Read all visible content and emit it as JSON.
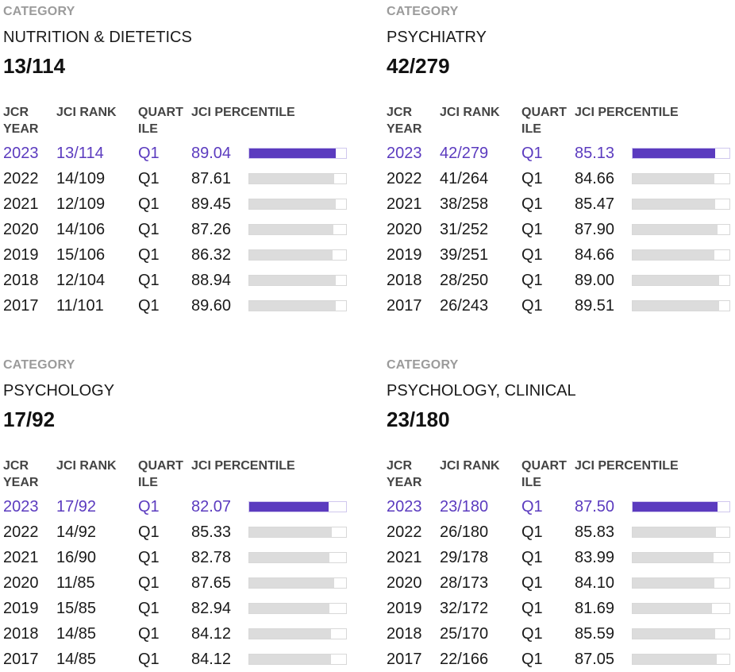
{
  "colors": {
    "accent": "#5b3bbf",
    "bar_inactive": "#dcdcdc",
    "label_gray": "#9b9b9b"
  },
  "categories": [
    {
      "label": "CATEGORY",
      "name": "NUTRITION & DIETETICS",
      "rank": "13/114",
      "headers": {
        "year": "JCR YEAR",
        "rank": "JCI RANK",
        "quartile": "QUART ILE",
        "percentile": "JCI PERCENTILE"
      },
      "rows": [
        {
          "year": "2023",
          "rank": "13/114",
          "quartile": "Q1",
          "percentile": "89.04"
        },
        {
          "year": "2022",
          "rank": "14/109",
          "quartile": "Q1",
          "percentile": "87.61"
        },
        {
          "year": "2021",
          "rank": "12/109",
          "quartile": "Q1",
          "percentile": "89.45"
        },
        {
          "year": "2020",
          "rank": "14/106",
          "quartile": "Q1",
          "percentile": "87.26"
        },
        {
          "year": "2019",
          "rank": "15/106",
          "quartile": "Q1",
          "percentile": "86.32"
        },
        {
          "year": "2018",
          "rank": "12/104",
          "quartile": "Q1",
          "percentile": "88.94"
        },
        {
          "year": "2017",
          "rank": "11/101",
          "quartile": "Q1",
          "percentile": "89.60"
        }
      ]
    },
    {
      "label": "CATEGORY",
      "name": "PSYCHIATRY",
      "rank": "42/279",
      "headers": {
        "year": "JCR YEAR",
        "rank": "JCI RANK",
        "quartile": "QUART ILE",
        "percentile": "JCI PERCENTILE"
      },
      "rows": [
        {
          "year": "2023",
          "rank": "42/279",
          "quartile": "Q1",
          "percentile": "85.13"
        },
        {
          "year": "2022",
          "rank": "41/264",
          "quartile": "Q1",
          "percentile": "84.66"
        },
        {
          "year": "2021",
          "rank": "38/258",
          "quartile": "Q1",
          "percentile": "85.47"
        },
        {
          "year": "2020",
          "rank": "31/252",
          "quartile": "Q1",
          "percentile": "87.90"
        },
        {
          "year": "2019",
          "rank": "39/251",
          "quartile": "Q1",
          "percentile": "84.66"
        },
        {
          "year": "2018",
          "rank": "28/250",
          "quartile": "Q1",
          "percentile": "89.00"
        },
        {
          "year": "2017",
          "rank": "26/243",
          "quartile": "Q1",
          "percentile": "89.51"
        }
      ]
    },
    {
      "label": "CATEGORY",
      "name": "PSYCHOLOGY",
      "rank": "17/92",
      "headers": {
        "year": "JCR YEAR",
        "rank": "JCI RANK",
        "quartile": "QUART ILE",
        "percentile": "JCI PERCENTILE"
      },
      "rows": [
        {
          "year": "2023",
          "rank": "17/92",
          "quartile": "Q1",
          "percentile": "82.07"
        },
        {
          "year": "2022",
          "rank": "14/92",
          "quartile": "Q1",
          "percentile": "85.33"
        },
        {
          "year": "2021",
          "rank": "16/90",
          "quartile": "Q1",
          "percentile": "82.78"
        },
        {
          "year": "2020",
          "rank": "11/85",
          "quartile": "Q1",
          "percentile": "87.65"
        },
        {
          "year": "2019",
          "rank": "15/85",
          "quartile": "Q1",
          "percentile": "82.94"
        },
        {
          "year": "2018",
          "rank": "14/85",
          "quartile": "Q1",
          "percentile": "84.12"
        },
        {
          "year": "2017",
          "rank": "14/85",
          "quartile": "Q1",
          "percentile": "84.12"
        }
      ]
    },
    {
      "label": "CATEGORY",
      "name": "PSYCHOLOGY, CLINICAL",
      "rank": "23/180",
      "headers": {
        "year": "JCR YEAR",
        "rank": "JCI RANK",
        "quartile": "QUART ILE",
        "percentile": "JCI PERCENTILE"
      },
      "rows": [
        {
          "year": "2023",
          "rank": "23/180",
          "quartile": "Q1",
          "percentile": "87.50"
        },
        {
          "year": "2022",
          "rank": "26/180",
          "quartile": "Q1",
          "percentile": "85.83"
        },
        {
          "year": "2021",
          "rank": "29/178",
          "quartile": "Q1",
          "percentile": "83.99"
        },
        {
          "year": "2020",
          "rank": "28/173",
          "quartile": "Q1",
          "percentile": "84.10"
        },
        {
          "year": "2019",
          "rank": "32/172",
          "quartile": "Q1",
          "percentile": "81.69"
        },
        {
          "year": "2018",
          "rank": "25/170",
          "quartile": "Q1",
          "percentile": "85.59"
        },
        {
          "year": "2017",
          "rank": "22/166",
          "quartile": "Q1",
          "percentile": "87.05"
        }
      ]
    }
  ]
}
